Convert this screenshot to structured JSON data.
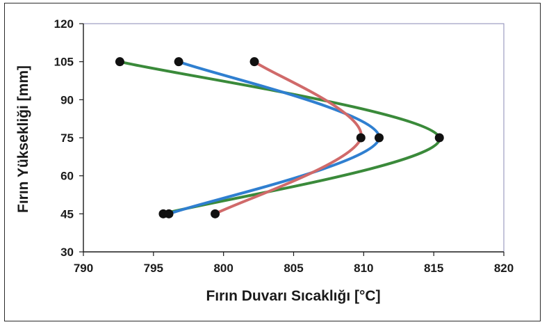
{
  "chart_data": {
    "type": "line",
    "title": "",
    "xlabel": "Fırın Duvarı Sıcaklığı [°C]",
    "ylabel": "Fırın Yüksekliği [mm]",
    "xlim": [
      790,
      820
    ],
    "ylim": [
      30,
      120
    ],
    "xticks": [
      "790",
      "795",
      "800",
      "805",
      "810",
      "815",
      "820"
    ],
    "yticks": [
      "120",
      "105",
      "90",
      "75",
      "60",
      "45",
      "30"
    ],
    "grid": false,
    "legend": "none",
    "series": [
      {
        "color": "#3a8a3a",
        "points": [
          {
            "x": 792.6,
            "y": 105
          },
          {
            "x": 815.4,
            "y": 75
          },
          {
            "x": 795.7,
            "y": 45
          }
        ]
      },
      {
        "color": "#2f7fd0",
        "points": [
          {
            "x": 796.8,
            "y": 105
          },
          {
            "x": 811.1,
            "y": 75
          },
          {
            "x": 796.1,
            "y": 45
          }
        ]
      },
      {
        "color": "#d06a6a",
        "points": [
          {
            "x": 802.2,
            "y": 105
          },
          {
            "x": 809.8,
            "y": 75
          },
          {
            "x": 799.4,
            "y": 45
          }
        ]
      }
    ],
    "marker_color": "#111111"
  }
}
